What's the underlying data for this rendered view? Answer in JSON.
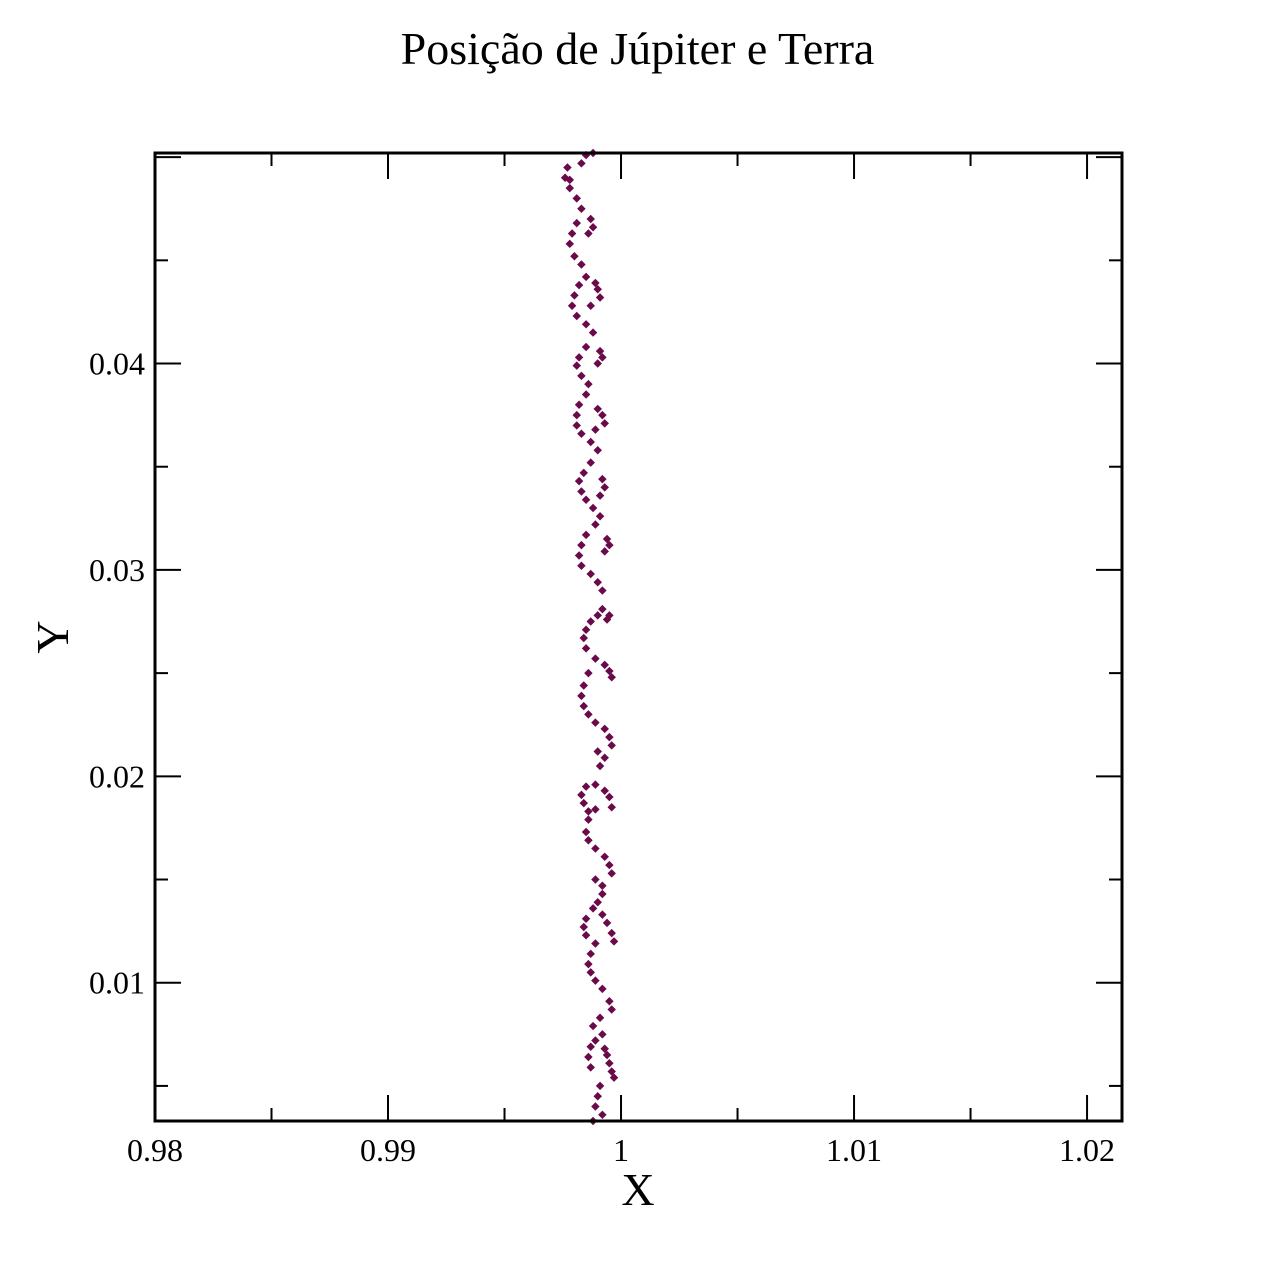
{
  "chart_data": {
    "type": "scatter",
    "title": "Posição de Júpiter e Terra",
    "xlabel": "X",
    "ylabel": "Y",
    "xlim": [
      0.98,
      1.0215
    ],
    "ylim": [
      0.0033,
      0.0502
    ],
    "x_ticks": [
      {
        "value": 0.98,
        "label": "0.98"
      },
      {
        "value": 0.99,
        "label": "0.99"
      },
      {
        "value": 1.0,
        "label": "1"
      },
      {
        "value": 1.01,
        "label": "1.01"
      },
      {
        "value": 1.02,
        "label": "1.02"
      }
    ],
    "y_ticks": [
      {
        "value": 0.01,
        "label": "0.01"
      },
      {
        "value": 0.02,
        "label": "0.02"
      },
      {
        "value": 0.03,
        "label": "0.03"
      },
      {
        "value": 0.04,
        "label": "0.04"
      }
    ],
    "grid": false,
    "marker_color": "#6b0a4a",
    "series": [
      {
        "points": [
          [
            0.9997,
            0.0054
          ],
          [
            0.9996,
            0.0057
          ],
          [
            0.9995,
            0.0061
          ],
          [
            0.9994,
            0.0065
          ],
          [
            0.9993,
            0.0068
          ],
          [
            0.9991,
            0.005
          ],
          [
            0.999,
            0.0045
          ],
          [
            0.9989,
            0.004
          ],
          [
            0.9992,
            0.0036
          ],
          [
            0.9988,
            0.0033
          ],
          [
            0.9987,
            0.0059
          ],
          [
            0.9986,
            0.0064
          ],
          [
            0.9987,
            0.0069
          ],
          [
            0.9989,
            0.0072
          ],
          [
            0.9992,
            0.0075
          ],
          [
            0.9996,
            0.0087
          ],
          [
            0.9995,
            0.0091
          ],
          [
            0.9992,
            0.0097
          ],
          [
            0.9989,
            0.0101
          ],
          [
            0.9987,
            0.0105
          ],
          [
            0.9986,
            0.0109
          ],
          [
            0.9987,
            0.0114
          ],
          [
            0.9989,
            0.0119
          ],
          [
            0.9991,
            0.0083
          ],
          [
            0.9988,
            0.0079
          ],
          [
            0.9997,
            0.012
          ],
          [
            0.9996,
            0.0124
          ],
          [
            0.9994,
            0.0129
          ],
          [
            0.9992,
            0.0133
          ],
          [
            0.9988,
            0.0136
          ],
          [
            0.9985,
            0.0131
          ],
          [
            0.9984,
            0.0127
          ],
          [
            0.9985,
            0.0123
          ],
          [
            0.999,
            0.0139
          ],
          [
            0.9992,
            0.0143
          ],
          [
            0.9996,
            0.0153
          ],
          [
            0.9995,
            0.0157
          ],
          [
            0.9993,
            0.0161
          ],
          [
            0.9989,
            0.0165
          ],
          [
            0.9986,
            0.0169
          ],
          [
            0.9985,
            0.0173
          ],
          [
            0.9986,
            0.0179
          ],
          [
            0.9989,
            0.0184
          ],
          [
            0.9992,
            0.0147
          ],
          [
            0.9989,
            0.015
          ],
          [
            0.9996,
            0.0185
          ],
          [
            0.9995,
            0.019
          ],
          [
            0.9993,
            0.0193
          ],
          [
            0.9989,
            0.0196
          ],
          [
            0.9985,
            0.0195
          ],
          [
            0.9983,
            0.0191
          ],
          [
            0.9984,
            0.0187
          ],
          [
            0.9986,
            0.0183
          ],
          [
            0.9991,
            0.0205
          ],
          [
            0.9993,
            0.0209
          ],
          [
            0.9996,
            0.0215
          ],
          [
            0.9995,
            0.0219
          ],
          [
            0.9993,
            0.0223
          ],
          [
            0.9989,
            0.0226
          ],
          [
            0.9986,
            0.023
          ],
          [
            0.9984,
            0.0234
          ],
          [
            0.9983,
            0.0239
          ],
          [
            0.9984,
            0.0244
          ],
          [
            0.9986,
            0.025
          ],
          [
            0.999,
            0.0212
          ],
          [
            0.9996,
            0.0248
          ],
          [
            0.9995,
            0.0251
          ],
          [
            0.9993,
            0.0254
          ],
          [
            0.9989,
            0.0257
          ],
          [
            0.9985,
            0.0262
          ],
          [
            0.9984,
            0.0267
          ],
          [
            0.9985,
            0.0271
          ],
          [
            0.9987,
            0.0275
          ],
          [
            0.999,
            0.0278
          ],
          [
            0.9992,
            0.0281
          ],
          [
            0.9995,
            0.0278
          ],
          [
            0.9994,
            0.0276
          ],
          [
            0.9992,
            0.029
          ],
          [
            0.999,
            0.0294
          ],
          [
            0.9987,
            0.0298
          ],
          [
            0.9983,
            0.0302
          ],
          [
            0.9982,
            0.0307
          ],
          [
            0.9983,
            0.0312
          ],
          [
            0.9985,
            0.0317
          ],
          [
            0.9989,
            0.0322
          ],
          [
            0.9995,
            0.0312
          ],
          [
            0.9994,
            0.0315
          ],
          [
            0.9993,
            0.0309
          ],
          [
            0.9991,
            0.0326
          ],
          [
            0.9988,
            0.033
          ],
          [
            0.9985,
            0.0334
          ],
          [
            0.9983,
            0.0338
          ],
          [
            0.9982,
            0.0343
          ],
          [
            0.9984,
            0.0347
          ],
          [
            0.9987,
            0.0352
          ],
          [
            0.9993,
            0.034
          ],
          [
            0.9992,
            0.0344
          ],
          [
            0.9991,
            0.0336
          ],
          [
            0.999,
            0.0358
          ],
          [
            0.9987,
            0.0362
          ],
          [
            0.9983,
            0.0366
          ],
          [
            0.9981,
            0.037
          ],
          [
            0.9981,
            0.0375
          ],
          [
            0.9982,
            0.038
          ],
          [
            0.9985,
            0.0385
          ],
          [
            0.9993,
            0.0371
          ],
          [
            0.9992,
            0.0375
          ],
          [
            0.999,
            0.0378
          ],
          [
            0.9989,
            0.0368
          ],
          [
            0.9986,
            0.039
          ],
          [
            0.9983,
            0.0394
          ],
          [
            0.9981,
            0.0399
          ],
          [
            0.9982,
            0.0403
          ],
          [
            0.9985,
            0.0408
          ],
          [
            0.9992,
            0.0403
          ],
          [
            0.9991,
            0.0406
          ],
          [
            0.999,
            0.04
          ],
          [
            0.9988,
            0.0415
          ],
          [
            0.9985,
            0.0419
          ],
          [
            0.9981,
            0.0423
          ],
          [
            0.9979,
            0.0428
          ],
          [
            0.998,
            0.0433
          ],
          [
            0.9982,
            0.0438
          ],
          [
            0.9985,
            0.0442
          ],
          [
            0.9991,
            0.0432
          ],
          [
            0.999,
            0.0436
          ],
          [
            0.9989,
            0.0439
          ],
          [
            0.9987,
            0.0428
          ],
          [
            0.9983,
            0.0448
          ],
          [
            0.998,
            0.0452
          ],
          [
            0.9978,
            0.0458
          ],
          [
            0.9979,
            0.0463
          ],
          [
            0.9981,
            0.0468
          ],
          [
            0.9986,
            0.0463
          ],
          [
            0.9988,
            0.0466
          ],
          [
            0.9987,
            0.047
          ],
          [
            0.9983,
            0.0475
          ],
          [
            0.9981,
            0.048
          ],
          [
            0.9978,
            0.0485
          ],
          [
            0.9976,
            0.049
          ],
          [
            0.9977,
            0.0495
          ],
          [
            0.9983,
            0.0497
          ],
          [
            0.9985,
            0.0501
          ],
          [
            0.9988,
            0.0502
          ],
          [
            0.9978,
            0.0489
          ]
        ]
      }
    ]
  }
}
